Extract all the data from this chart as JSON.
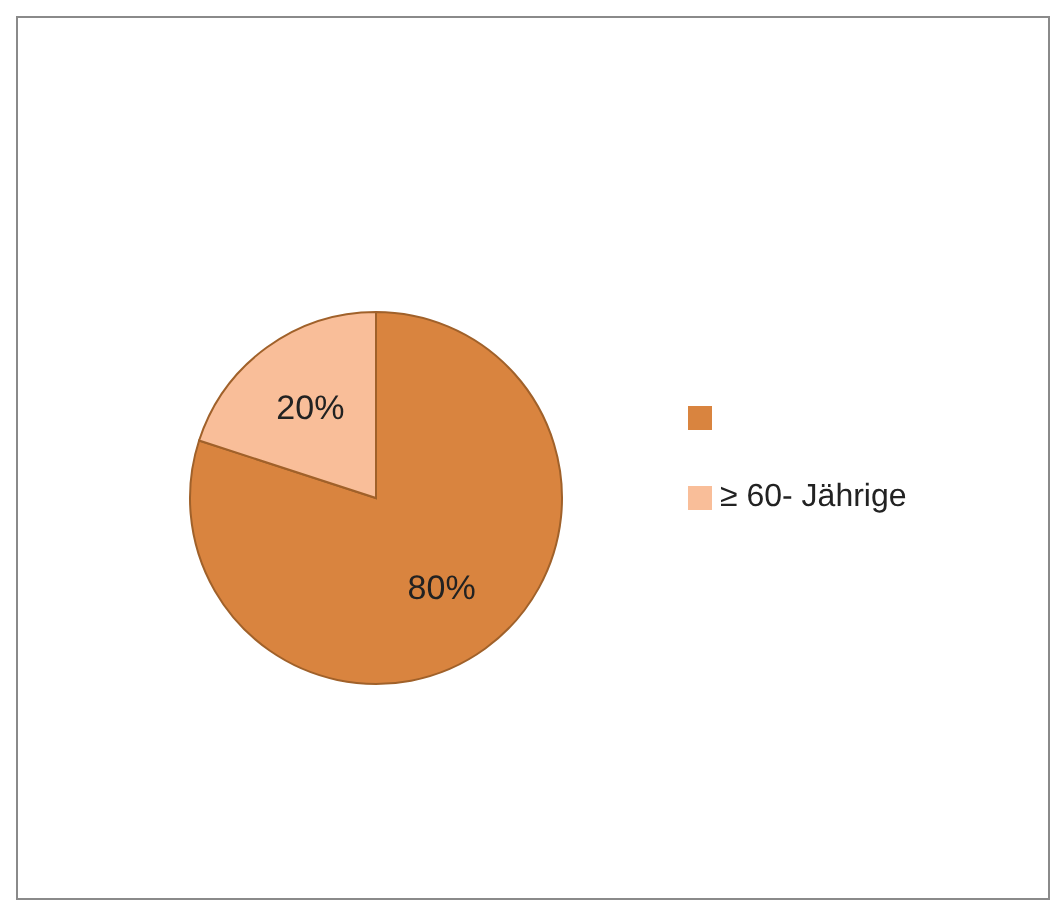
{
  "chart_data": {
    "type": "pie",
    "categories": [
      null,
      "≥ 60- Jährige"
    ],
    "values": [
      80,
      20
    ],
    "colors": [
      "#d9843f",
      "#f9be99"
    ],
    "value_labels": [
      "80%",
      "20%"
    ],
    "legend": "right"
  }
}
